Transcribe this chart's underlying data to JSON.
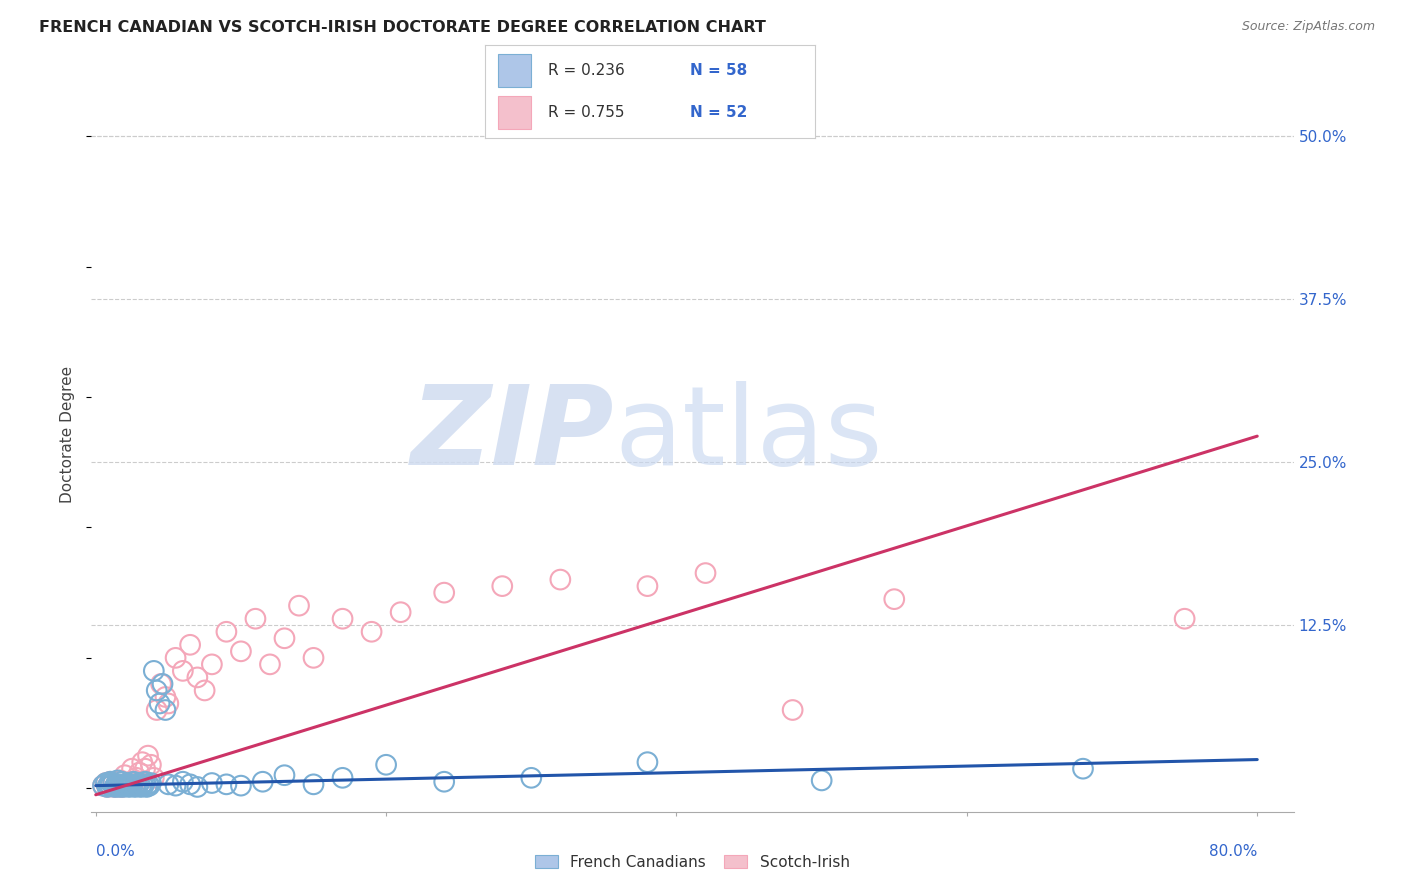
{
  "title": "FRENCH CANADIAN VS SCOTCH-IRISH DOCTORATE DEGREE CORRELATION CHART",
  "source": "Source: ZipAtlas.com",
  "ylabel": "Doctorate Degree",
  "right_ytick_labels": [
    "50.0%",
    "37.5%",
    "25.0%",
    "12.5%"
  ],
  "right_ytick_values": [
    0.5,
    0.375,
    0.25,
    0.125
  ],
  "xlim": [
    -0.003,
    0.825
  ],
  "ylim": [
    -0.018,
    0.56
  ],
  "legend_bottom_label1": "French Canadians",
  "legend_bottom_label2": "Scotch-Irish",
  "blue_scatter_color": "#7BAFD4",
  "pink_scatter_color": "#F4A7B9",
  "blue_line_color": "#2255AA",
  "pink_line_color": "#CC3366",
  "bg_color": "#FFFFFF",
  "grid_color": "#CCCCCC",
  "blue_r": "0.236",
  "blue_n": "58",
  "pink_r": "0.755",
  "pink_n": "52",
  "blue_trend_x0": 0.0,
  "blue_trend_x1": 0.8,
  "blue_trend_y0": 0.002,
  "blue_trend_y1": 0.022,
  "pink_trend_x0": 0.0,
  "pink_trend_x1": 0.8,
  "pink_trend_y0": -0.005,
  "pink_trend_y1": 0.27,
  "blue_scatter_x": [
    0.005,
    0.007,
    0.008,
    0.009,
    0.01,
    0.01,
    0.012,
    0.013,
    0.014,
    0.015,
    0.015,
    0.016,
    0.017,
    0.018,
    0.018,
    0.019,
    0.02,
    0.021,
    0.022,
    0.023,
    0.024,
    0.025,
    0.026,
    0.027,
    0.028,
    0.029,
    0.03,
    0.031,
    0.032,
    0.033,
    0.034,
    0.035,
    0.036,
    0.037,
    0.038,
    0.04,
    0.042,
    0.044,
    0.046,
    0.048,
    0.05,
    0.055,
    0.06,
    0.065,
    0.07,
    0.08,
    0.09,
    0.1,
    0.115,
    0.13,
    0.15,
    0.17,
    0.2,
    0.24,
    0.3,
    0.38,
    0.5,
    0.68
  ],
  "blue_scatter_y": [
    0.002,
    0.004,
    0.001,
    0.003,
    0.005,
    0.002,
    0.004,
    0.001,
    0.003,
    0.002,
    0.006,
    0.001,
    0.003,
    0.002,
    0.005,
    0.001,
    0.003,
    0.002,
    0.004,
    0.001,
    0.003,
    0.002,
    0.005,
    0.001,
    0.003,
    0.002,
    0.004,
    0.001,
    0.003,
    0.002,
    0.005,
    0.001,
    0.003,
    0.002,
    0.004,
    0.09,
    0.075,
    0.065,
    0.08,
    0.06,
    0.003,
    0.002,
    0.005,
    0.003,
    0.001,
    0.004,
    0.003,
    0.002,
    0.005,
    0.01,
    0.003,
    0.008,
    0.018,
    0.005,
    0.008,
    0.02,
    0.006,
    0.015
  ],
  "pink_scatter_x": [
    0.005,
    0.007,
    0.008,
    0.009,
    0.01,
    0.01,
    0.012,
    0.013,
    0.015,
    0.016,
    0.017,
    0.018,
    0.02,
    0.022,
    0.024,
    0.025,
    0.027,
    0.028,
    0.03,
    0.032,
    0.034,
    0.036,
    0.038,
    0.04,
    0.042,
    0.045,
    0.048,
    0.05,
    0.055,
    0.06,
    0.065,
    0.07,
    0.075,
    0.08,
    0.09,
    0.1,
    0.11,
    0.12,
    0.13,
    0.14,
    0.15,
    0.17,
    0.19,
    0.21,
    0.24,
    0.28,
    0.32,
    0.38,
    0.42,
    0.48,
    0.55,
    0.75
  ],
  "pink_scatter_y": [
    0.002,
    0.004,
    0.001,
    0.003,
    0.005,
    0.002,
    0.004,
    0.001,
    0.003,
    0.002,
    0.006,
    0.001,
    0.01,
    0.002,
    0.005,
    0.015,
    0.003,
    0.008,
    0.012,
    0.02,
    0.015,
    0.025,
    0.018,
    0.008,
    0.06,
    0.08,
    0.07,
    0.065,
    0.1,
    0.09,
    0.11,
    0.085,
    0.075,
    0.095,
    0.12,
    0.105,
    0.13,
    0.095,
    0.115,
    0.14,
    0.1,
    0.13,
    0.12,
    0.135,
    0.15,
    0.155,
    0.16,
    0.155,
    0.165,
    0.06,
    0.145,
    0.13
  ]
}
